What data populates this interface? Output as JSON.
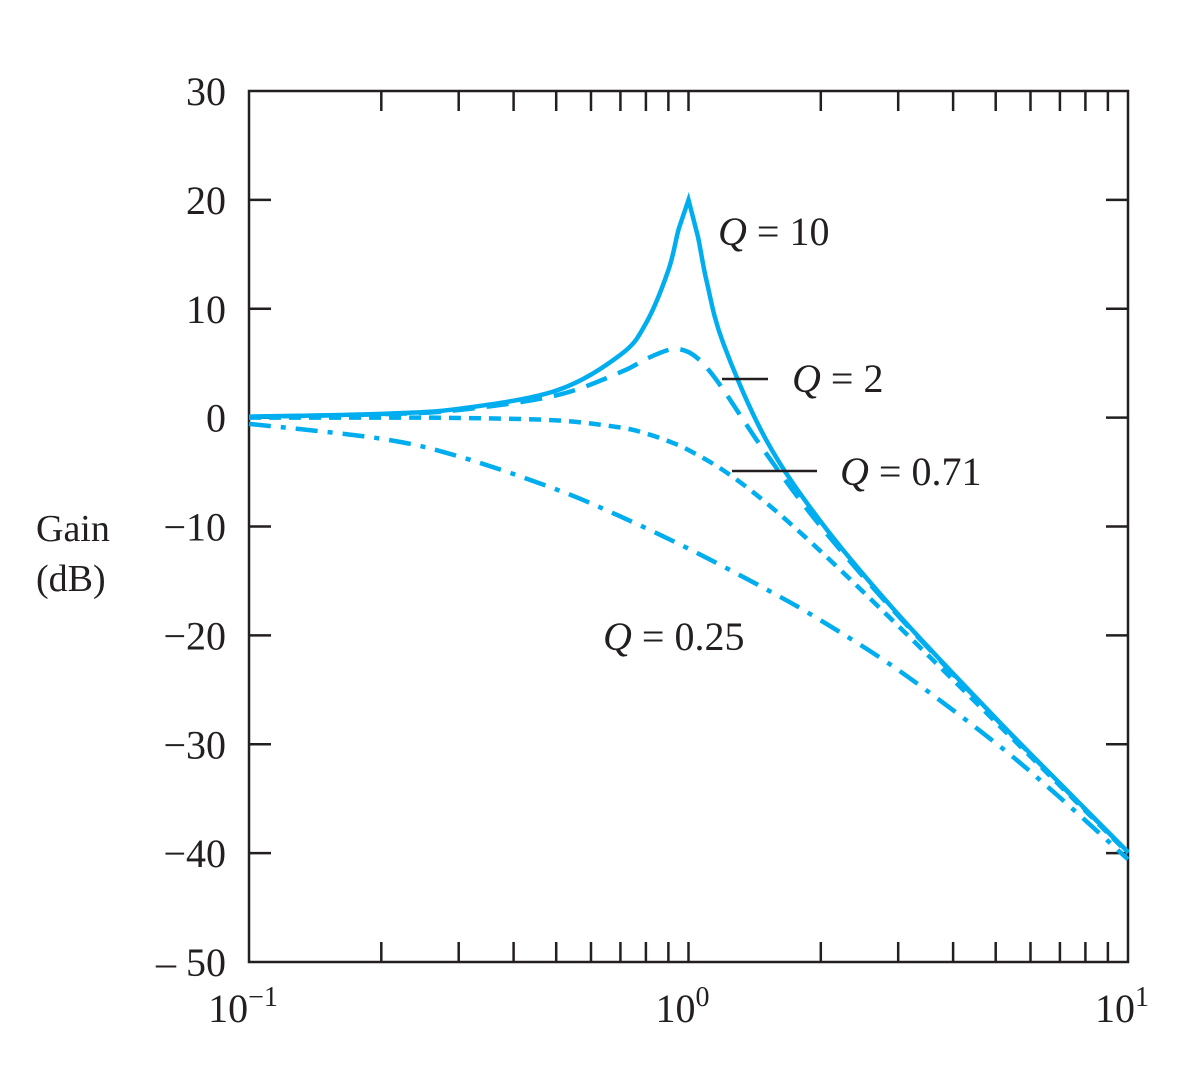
{
  "chart_data": {
    "type": "line",
    "title": "",
    "ylabel_line1": "Gain",
    "ylabel_line2": "(dB)",
    "xlabel": "",
    "xscale": "log",
    "xlim": [
      0.1,
      10
    ],
    "ylim": [
      -50,
      30
    ],
    "grid": false,
    "line_color": "#00AEEF",
    "x_tick_labels": [
      {
        "value": 0.1,
        "base": "10",
        "exp": "−1"
      },
      {
        "value": 1,
        "base": "10",
        "exp": "0"
      },
      {
        "value": 10,
        "base": "10",
        "exp": "1"
      }
    ],
    "y_tick_labels": [
      {
        "value": 30,
        "label": "30"
      },
      {
        "value": 20,
        "label": "20"
      },
      {
        "value": 10,
        "label": "10"
      },
      {
        "value": 0,
        "label": "0"
      },
      {
        "value": -10,
        "label": "−10"
      },
      {
        "value": -20,
        "label": "−20"
      },
      {
        "value": -30,
        "label": "−30"
      },
      {
        "value": -40,
        "label": "−40"
      },
      {
        "value": -50,
        "label": "– 50"
      }
    ],
    "series": [
      {
        "name": "Q = 10",
        "q_symbol": "Q",
        "label_rest": " = 10",
        "style": "solid",
        "x": [
          0.1,
          0.2,
          0.3,
          0.5,
          0.7,
          0.8,
          0.9,
          0.95,
          1.0,
          1.05,
          1.1,
          1.2,
          1.5,
          2,
          3,
          5,
          7,
          10
        ],
        "y": [
          0.09,
          0.35,
          0.81,
          2.48,
          5.77,
          8.66,
          13.55,
          17.33,
          20.0,
          16.67,
          12.5,
          6.82,
          -2.0,
          -9.56,
          -18.07,
          -27.6,
          -33.6,
          -39.9
        ]
      },
      {
        "name": "Q = 2",
        "q_symbol": "Q",
        "label_rest": " = 2",
        "style": "long-dash",
        "x": [
          0.1,
          0.2,
          0.3,
          0.5,
          0.7,
          0.8,
          0.9,
          0.95,
          1.0,
          1.05,
          1.1,
          1.2,
          1.5,
          2,
          3,
          5,
          7,
          10
        ],
        "y": [
          0.08,
          0.31,
          0.7,
          2.04,
          4.17,
          5.38,
          6.22,
          6.29,
          6.02,
          5.43,
          4.6,
          2.57,
          -3.27,
          -10.0,
          -18.2,
          -27.65,
          -33.65,
          -39.92
        ]
      },
      {
        "name": "Q = 0.71",
        "q_symbol": "Q",
        "label_rest": " = 0.71",
        "style": "short-dash",
        "x": [
          0.1,
          0.2,
          0.3,
          0.5,
          0.7,
          0.8,
          0.9,
          1.0,
          1.2,
          1.5,
          2,
          3,
          5,
          7,
          10
        ],
        "y": [
          0.0,
          0.0,
          -0.03,
          -0.25,
          -0.91,
          -1.46,
          -2.16,
          -2.98,
          -4.84,
          -7.8,
          -12.29,
          -19.13,
          -27.96,
          -33.8,
          -40.0
        ]
      },
      {
        "name": "Q = 0.25",
        "q_symbol": "Q",
        "label_rest": " = 0.25",
        "style": "dash-dot",
        "x": [
          0.1,
          0.2,
          0.3,
          0.5,
          0.7,
          1.0,
          1.5,
          2,
          3,
          5,
          7,
          10
        ],
        "y": [
          -0.57,
          -1.94,
          -3.56,
          -6.59,
          -9.08,
          -12.04,
          -15.75,
          -18.63,
          -23.18,
          -29.89,
          -34.9,
          -40.57
        ]
      }
    ]
  }
}
